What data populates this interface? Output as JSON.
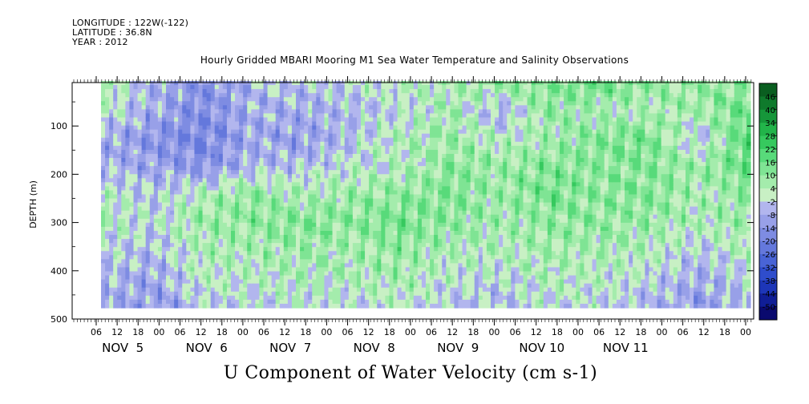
{
  "header": {
    "longitude": "LONGITUDE : 122W(-122)",
    "latitude": "LATITUDE : 36.8N",
    "year": "YEAR : 2012"
  },
  "chart_data": {
    "type": "heatmap",
    "title": "Hourly Gridded MBARI Mooring M1 Sea Water Temperature and Salinity Observations",
    "xlabel_bottom": "U Component of Water Velocity (cm s-1)",
    "ylabel": "DEPTH (m)",
    "ylim": [
      500,
      10
    ],
    "y_ticks": [
      100,
      200,
      300,
      400,
      500
    ],
    "hour_ticks": [
      "06",
      "12",
      "18",
      "00",
      "06",
      "12",
      "18",
      "00",
      "06",
      "12",
      "18",
      "00",
      "06",
      "12",
      "18",
      "00",
      "06",
      "12",
      "18",
      "00",
      "06",
      "12",
      "18",
      "00",
      "06",
      "12",
      "18",
      "00",
      "06",
      "12",
      "18",
      "00"
    ],
    "day_labels": [
      "NOV  5",
      "NOV  6",
      "NOV  7",
      "NOV  8",
      "NOV  9",
      "NOV 10",
      "NOV 11"
    ],
    "colorbar": {
      "levels": [
        "46",
        "40",
        "34",
        "28",
        "22",
        "16",
        "10",
        "4",
        "-2",
        "-8",
        "-14",
        "-20",
        "-26",
        "-32",
        "-38",
        "-44",
        "-50"
      ]
    },
    "velocity_field": {
      "depths": [
        20,
        80,
        140,
        200,
        260,
        320,
        380,
        440,
        490
      ],
      "days": [
        "NOV 5 06",
        "NOV 5 18",
        "NOV 6 06",
        "NOV 6 18",
        "NOV 7 06",
        "NOV 7 18",
        "NOV 8 06",
        "NOV 8 18",
        "NOV 9 06",
        "NOV 9 18",
        "NOV 10 06",
        "NOV 10 18",
        "NOV 11 06",
        "NOV 11 18"
      ],
      "values": [
        [
          4,
          -6,
          -14,
          -6,
          -4,
          -2,
          2,
          4,
          10,
          12,
          16,
          10,
          8,
          10
        ],
        [
          2,
          -8,
          -16,
          -8,
          -8,
          -4,
          -2,
          6,
          -8,
          10,
          4,
          4,
          8,
          16
        ],
        [
          -8,
          -14,
          -18,
          -8,
          -12,
          -4,
          4,
          8,
          2,
          6,
          12,
          14,
          -6,
          20
        ],
        [
          -6,
          -10,
          -14,
          -6,
          -4,
          0,
          2,
          10,
          8,
          12,
          10,
          12,
          8,
          16
        ],
        [
          2,
          -4,
          4,
          10,
          4,
          8,
          10,
          12,
          8,
          14,
          10,
          12,
          4,
          10
        ],
        [
          4,
          -2,
          8,
          10,
          12,
          10,
          14,
          10,
          6,
          10,
          10,
          8,
          4,
          8
        ],
        [
          -2,
          -6,
          4,
          6,
          8,
          6,
          10,
          4,
          4,
          6,
          6,
          4,
          -4,
          6
        ],
        [
          -6,
          -10,
          2,
          2,
          4,
          4,
          6,
          0,
          -2,
          4,
          2,
          -2,
          -8,
          -2
        ],
        [
          -8,
          -12,
          -4,
          -2,
          0,
          -2,
          2,
          -4,
          -6,
          0,
          -2,
          -6,
          -12,
          -6
        ]
      ]
    }
  }
}
